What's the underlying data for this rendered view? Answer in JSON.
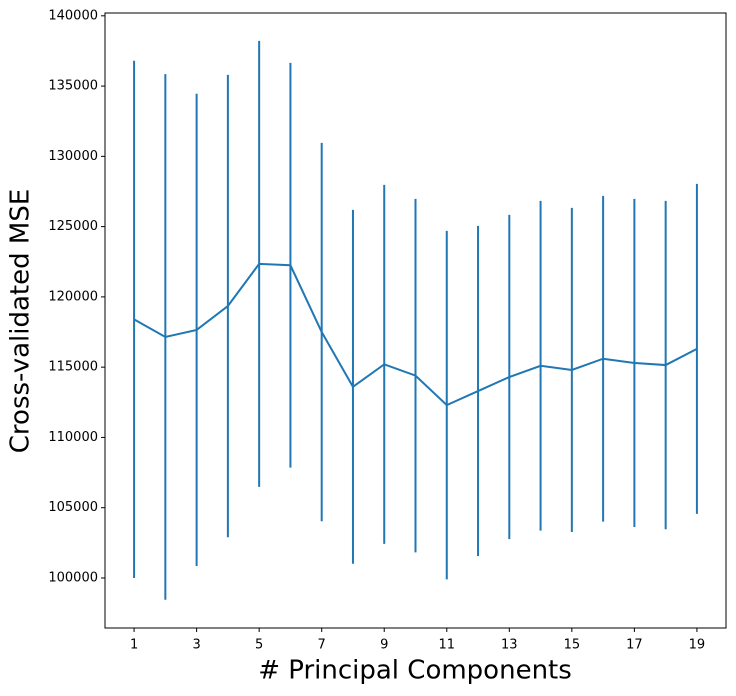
{
  "chart_data": {
    "type": "errorbar-line",
    "x_label": "# Principal Components",
    "y_label": "Cross-validated MSE",
    "x": [
      1,
      2,
      3,
      4,
      5,
      6,
      7,
      8,
      9,
      10,
      11,
      12,
      13,
      14,
      15,
      16,
      17,
      18,
      19
    ],
    "series": [
      {
        "color": "#1f77b4",
        "values": [
          118400,
          117150,
          117650,
          119350,
          122350,
          122250,
          117500,
          113600,
          115200,
          114400,
          112300,
          113300,
          114300,
          115100,
          114800,
          115600,
          115300,
          115150,
          116300
        ],
        "errors": [
          18400,
          18700,
          16800,
          16450,
          15870,
          14400,
          13460,
          12590,
          12770,
          12575,
          12400,
          11750,
          11540,
          11730,
          11530,
          11590,
          11675,
          11680,
          11740
        ]
      }
    ],
    "xlim": [
      0.07,
      19.93
    ],
    "ylim": [
      96440,
      140200
    ],
    "xticks": [
      1,
      3,
      5,
      7,
      9,
      11,
      13,
      15,
      17,
      19
    ],
    "yticks": [
      100000,
      105000,
      110000,
      115000,
      120000,
      125000,
      130000,
      135000,
      140000
    ]
  }
}
